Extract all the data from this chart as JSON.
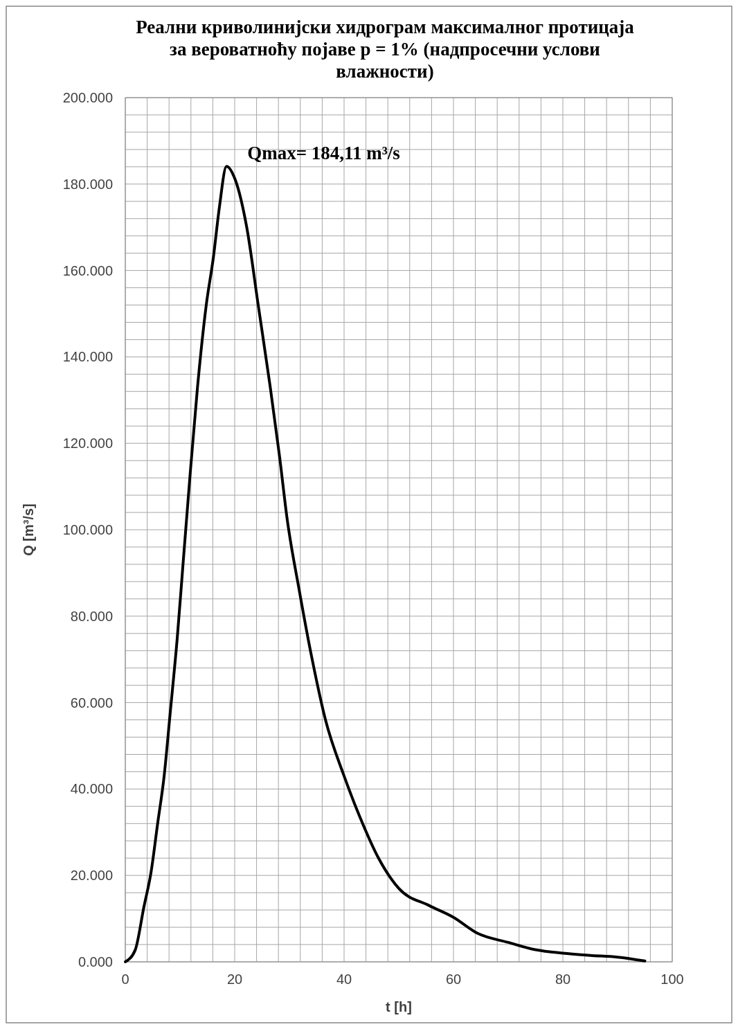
{
  "chart_data": {
    "type": "line",
    "title": "Реални криволинијски хидрограм максималног протицаја за вероватноћу појаве p = 1%  (надпросечни услови влажности)",
    "xlabel": "t [h]",
    "ylabel": "Q [m³/s]",
    "annotations": [
      {
        "text": "Qmax= 184,11 m³/s",
        "x": 18.5,
        "y": 184.11
      }
    ],
    "series": [
      {
        "color": "#000000",
        "x": [
          0,
          1.8,
          3.4,
          4.7,
          5.9,
          7.1,
          8.2,
          9.5,
          10.6,
          11.8,
          13.2,
          14.8,
          16.1,
          17.2,
          18.5,
          20.1,
          22.2,
          24.3,
          26.5,
          28.2,
          29.6,
          31.8,
          34.1,
          36.6,
          40,
          42.9,
          46.3,
          50,
          55.6,
          60,
          64.4,
          70,
          75,
          80,
          85,
          90,
          95
        ],
        "values": [
          0,
          2.7,
          12.7,
          20.7,
          31.9,
          43,
          57.5,
          75,
          92.8,
          112,
          133,
          152,
          163,
          174.6,
          184.11,
          181,
          170,
          152,
          133,
          117,
          102.4,
          86,
          70.4,
          56,
          43,
          33.5,
          24,
          17,
          13,
          10.3,
          6.6,
          4.5,
          2.8,
          2,
          1.5,
          1.1,
          0.2
        ]
      }
    ],
    "xlim": [
      0,
      100
    ],
    "ylim": [
      0,
      200
    ],
    "xticks": [
      0,
      {
        "value": 4,
        "label": null
      },
      {
        "value": 8,
        "label": null
      },
      {
        "value": 12,
        "label": null
      },
      {
        "value": 16,
        "label": null
      },
      20,
      {
        "value": 24,
        "label": null
      },
      {
        "value": 28,
        "label": null
      },
      {
        "value": 32,
        "label": null
      },
      {
        "value": 36,
        "label": null
      },
      40,
      {
        "value": 44,
        "label": null
      },
      {
        "value": 48,
        "label": null
      },
      {
        "value": 52,
        "label": null
      },
      {
        "value": 56,
        "label": null
      },
      60,
      {
        "value": 64,
        "label": null
      },
      {
        "value": 68,
        "label": null
      },
      {
        "value": 72,
        "label": null
      },
      {
        "value": 76,
        "label": null
      },
      80,
      {
        "value": 84,
        "label": null
      },
      {
        "value": 88,
        "label": null
      },
      {
        "value": 92,
        "label": null
      },
      {
        "value": 96,
        "label": null
      },
      100
    ],
    "yticks": [
      {
        "value": 0,
        "label": "0.000"
      },
      {
        "value": 4,
        "label": null
      },
      {
        "value": 8,
        "label": null
      },
      {
        "value": 12,
        "label": null
      },
      {
        "value": 16,
        "label": null
      },
      {
        "value": 20,
        "label": "20.000"
      },
      {
        "value": 24,
        "label": null
      },
      {
        "value": 28,
        "label": null
      },
      {
        "value": 32,
        "label": null
      },
      {
        "value": 36,
        "label": null
      },
      {
        "value": 40,
        "label": "40.000"
      },
      {
        "value": 44,
        "label": null
      },
      {
        "value": 48,
        "label": null
      },
      {
        "value": 52,
        "label": null
      },
      {
        "value": 56,
        "label": null
      },
      {
        "value": 60,
        "label": "60.000"
      },
      {
        "value": 64,
        "label": null
      },
      {
        "value": 68,
        "label": null
      },
      {
        "value": 72,
        "label": null
      },
      {
        "value": 76,
        "label": null
      },
      {
        "value": 80,
        "label": "80.000"
      },
      {
        "value": 84,
        "label": null
      },
      {
        "value": 88,
        "label": null
      },
      {
        "value": 92,
        "label": null
      },
      {
        "value": 96,
        "label": null
      },
      {
        "value": 100,
        "label": "100.000"
      },
      {
        "value": 104,
        "label": null
      },
      {
        "value": 108,
        "label": null
      },
      {
        "value": 112,
        "label": null
      },
      {
        "value": 116,
        "label": null
      },
      {
        "value": 120,
        "label": "120.000"
      },
      {
        "value": 124,
        "label": null
      },
      {
        "value": 128,
        "label": null
      },
      {
        "value": 132,
        "label": null
      },
      {
        "value": 136,
        "label": null
      },
      {
        "value": 140,
        "label": "140.000"
      },
      {
        "value": 144,
        "label": null
      },
      {
        "value": 148,
        "label": null
      },
      {
        "value": 152,
        "label": null
      },
      {
        "value": 156,
        "label": null
      },
      {
        "value": 160,
        "label": "160.000"
      },
      {
        "value": 164,
        "label": null
      },
      {
        "value": 168,
        "label": null
      },
      {
        "value": 172,
        "label": null
      },
      {
        "value": 176,
        "label": null
      },
      {
        "value": 180,
        "label": "180.000"
      },
      {
        "value": 184,
        "label": null
      },
      {
        "value": 188,
        "label": null
      },
      {
        "value": 192,
        "label": null
      },
      {
        "value": 196,
        "label": null
      },
      {
        "value": 200,
        "label": "200.000"
      }
    ],
    "grid": true,
    "line_style": "solid",
    "marker": "none"
  }
}
